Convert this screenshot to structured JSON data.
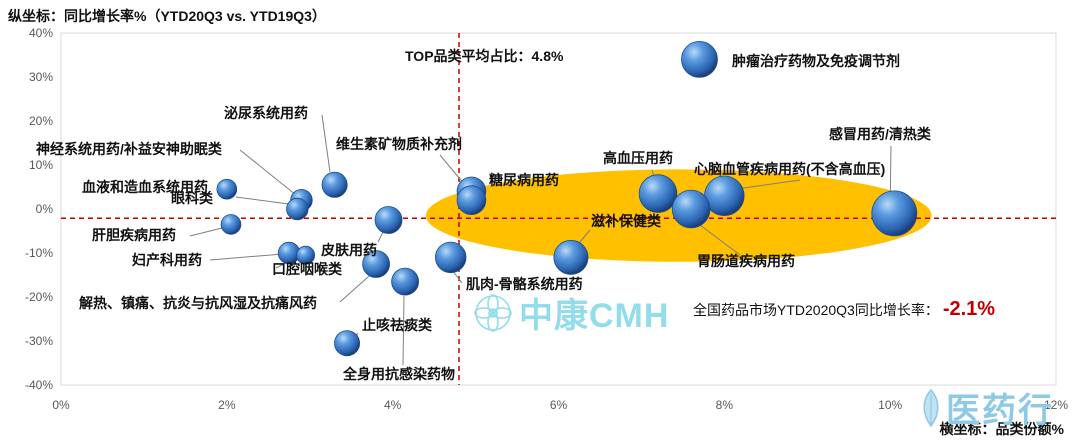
{
  "chart_data": {
    "type": "scatter",
    "subtype": "bubble",
    "ylabel": "纵坐标：同比增长率%（YTD20Q3 vs. YTD19Q3）",
    "xlabel": "横坐标：品类份额%",
    "xlim": [
      0,
      12
    ],
    "ylim": [
      -40,
      40
    ],
    "x_ticks": [
      "0%",
      "2%",
      "4%",
      "6%",
      "8%",
      "10%",
      "12%"
    ],
    "y_ticks": [
      "40%",
      "30%",
      "20%",
      "10%",
      "0%",
      "-10%",
      "-20%",
      "-30%",
      "-40%"
    ],
    "grid": false,
    "ref_lines": {
      "x": 4.8,
      "y": -2.1,
      "color": "#c00000",
      "style": "dashed"
    },
    "annotation": "TOP品类平均占比：4.8%",
    "note_label": "全国药品市场YTD2020Q3同比增长率：",
    "note_value": "-2.1%",
    "highlight_ellipse": {
      "color": "#ffc000",
      "x_range": [
        4.4,
        10.5
      ],
      "y_range": [
        -12,
        9
      ]
    },
    "points": [
      {
        "label": "肿瘤治疗药物及免疫调节剂",
        "x": 7.7,
        "y": 34,
        "size": 1.0
      },
      {
        "label": "感冒用药/清热类",
        "x": 10.05,
        "y": -1,
        "size": 1.25
      },
      {
        "label": "心脑血管疾病用药(不含高血压)",
        "x": 8.0,
        "y": 3,
        "size": 1.1
      },
      {
        "label": "高血压用药",
        "x": 7.2,
        "y": 3.5,
        "size": 1.05
      },
      {
        "label": "胃肠道疾病用药",
        "x": 7.6,
        "y": 0,
        "size": 1.05
      },
      {
        "label": "滋补保健类",
        "x": 6.15,
        "y": -11,
        "size": 0.95
      },
      {
        "label": "糖尿病用药",
        "x": 4.95,
        "y": 4,
        "size": 0.8
      },
      {
        "label": "维生素矿物质补充剂",
        "x": 4.95,
        "y": 2,
        "size": 0.8
      },
      {
        "label": "肌肉-骨骼系统用药",
        "x": 4.7,
        "y": -11,
        "size": 0.85
      },
      {
        "label": "泌尿系统用药",
        "x": 3.3,
        "y": 5.5,
        "size": 0.7
      },
      {
        "label": "皮肤用药",
        "x": 3.95,
        "y": -2.5,
        "size": 0.75
      },
      {
        "label": "神经系统用药/补益安神助眠类",
        "x": 2.9,
        "y": 2,
        "size": 0.6
      },
      {
        "label": "血液和造血系统用药",
        "x": 2.0,
        "y": 4.5,
        "size": 0.55
      },
      {
        "label": "眼科类",
        "x": 2.85,
        "y": 0,
        "size": 0.6
      },
      {
        "label": "肝胆疾病用药",
        "x": 2.05,
        "y": -3.5,
        "size": 0.55
      },
      {
        "label": "妇产科用药",
        "x": 2.75,
        "y": -10,
        "size": 0.6
      },
      {
        "label": "口腔咽喉类",
        "x": 2.95,
        "y": -10.5,
        "size": 0.5
      },
      {
        "label": "解热、镇痛、抗炎与抗风湿及抗痛风药",
        "x": 3.8,
        "y": -12.5,
        "size": 0.75
      },
      {
        "label": "全身用抗感染药物",
        "x": 4.15,
        "y": -16.5,
        "size": 0.75
      },
      {
        "label": "止咳祛痰类",
        "x": 3.45,
        "y": -30.5,
        "size": 0.7
      }
    ]
  },
  "watermark": {
    "text": "中康CMH",
    "icon": "flower-logo-icon"
  },
  "logo": {
    "text": "医药行",
    "icon": "leaf-logo-icon"
  },
  "colors": {
    "bubble": "#2e6fb8",
    "bubble_highlight": "#9cc7f0",
    "ref_line": "#c00000",
    "ellipse": "#ffc000",
    "note_value": "#c00000"
  }
}
